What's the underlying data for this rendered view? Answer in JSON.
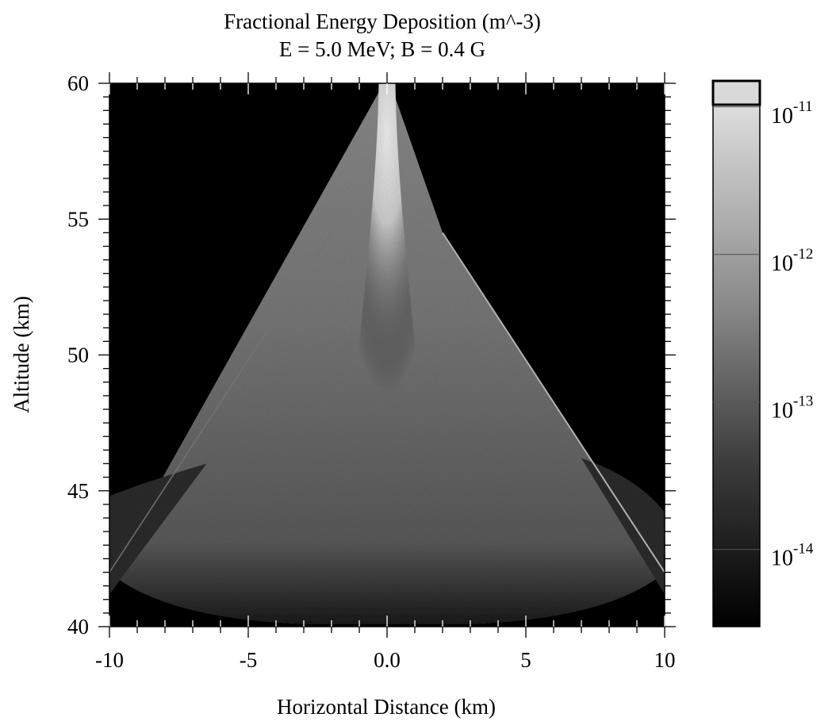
{
  "chart_data": {
    "type": "heatmap",
    "title": "Fractional Energy Deposition (m^-3)",
    "subtitle": "E = 5.0 MeV; B = 0.4 G",
    "xlabel": "Horizontal Distance (km)",
    "ylabel": "Altitude (km)",
    "xlim": [
      -10,
      10
    ],
    "ylim": [
      40,
      60
    ],
    "x_ticks": [
      -10,
      -5,
      0,
      5,
      10
    ],
    "x_tick_labels": [
      "-10",
      "-5",
      "0.0",
      "5",
      "10"
    ],
    "y_ticks": [
      40,
      45,
      50,
      55,
      60
    ],
    "y_tick_labels": [
      "40",
      "45",
      "50",
      "55",
      "60"
    ],
    "grid": false,
    "colorbar": {
      "scale": "log",
      "range": [
        3e-15,
        1.5e-11
      ],
      "ticks": [
        {
          "value": 1e-11,
          "base": "10",
          "exponent": "-11"
        },
        {
          "value": 1e-12,
          "base": "10",
          "exponent": "-12"
        },
        {
          "value": 1e-13,
          "base": "10",
          "exponent": "-13"
        },
        {
          "value": 1e-14,
          "base": "10",
          "exponent": "-14"
        }
      ],
      "colors": [
        "#000000",
        "#ffffff"
      ]
    },
    "regions": [
      {
        "name": "central-beam-core",
        "altitude_top": 60,
        "altitude_bottom": 48,
        "half_width_top": 0.3,
        "peak_value": 1e-11
      },
      {
        "name": "deposition-cone",
        "apex": [
          0,
          60
        ],
        "base_left": -10,
        "base_right": 10,
        "base_altitude": 42,
        "typical_value": 1e-13
      },
      {
        "name": "right-diagonal-edge",
        "from": [
          2,
          54.5
        ],
        "to": [
          10,
          42
        ]
      }
    ]
  }
}
